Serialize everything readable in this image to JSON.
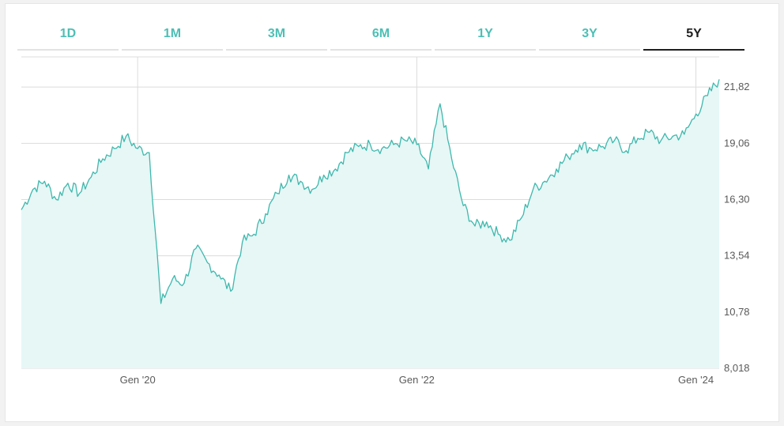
{
  "tabs": [
    {
      "label": "1D",
      "active": false
    },
    {
      "label": "1M",
      "active": false
    },
    {
      "label": "3M",
      "active": false
    },
    {
      "label": "6M",
      "active": false
    },
    {
      "label": "1Y",
      "active": false
    },
    {
      "label": "3Y",
      "active": false
    },
    {
      "label": "5Y",
      "active": true
    }
  ],
  "colors": {
    "accent": "#4cbfb5",
    "line": "#3fb8ad",
    "fill": "#e6f7f6",
    "grid": "#dcdcdc",
    "active_tab": "#1e1e1e"
  },
  "chart_data": {
    "type": "area",
    "title": "",
    "xlabel": "",
    "ylabel": "",
    "y_axis_position": "right",
    "grid": true,
    "ylim": [
      8.018,
      23.3
    ],
    "y_ticks": [
      "21,82",
      "19,06",
      "16,30",
      "13,54",
      "10,78",
      "8,018"
    ],
    "y_tick_values": [
      21.82,
      19.06,
      16.3,
      13.54,
      10.78,
      8.018
    ],
    "x_ticks": [
      "Gen '20",
      "Gen '22",
      "Gen '24"
    ],
    "x_tick_values": [
      "2020-01",
      "2022-01",
      "2024-01"
    ],
    "xlim": [
      "2019-03",
      "2024-03"
    ],
    "series": [
      {
        "x": [
          "2019-03",
          "2019-04",
          "2019-05",
          "2019-06",
          "2019-07",
          "2019-08",
          "2019-09",
          "2019-10",
          "2019-11",
          "2019-12",
          "2020-01",
          "2020-02",
          "2020-03",
          "2020-04",
          "2020-05",
          "2020-06",
          "2020-07",
          "2020-08",
          "2020-09",
          "2020-10",
          "2020-11",
          "2020-12",
          "2021-01",
          "2021-02",
          "2021-03",
          "2021-04",
          "2021-05",
          "2021-06",
          "2021-07",
          "2021-08",
          "2021-09",
          "2021-10",
          "2021-11",
          "2021-12",
          "2022-01",
          "2022-02",
          "2022-03",
          "2022-04",
          "2022-05",
          "2022-06",
          "2022-07",
          "2022-08",
          "2022-09",
          "2022-10",
          "2022-11",
          "2022-12",
          "2023-01",
          "2023-02",
          "2023-03",
          "2023-04",
          "2023-05",
          "2023-06",
          "2023-07",
          "2023-08",
          "2023-09",
          "2023-10",
          "2023-11",
          "2023-12",
          "2024-01",
          "2024-02",
          "2024-03"
        ],
        "values": [
          15.8,
          16.8,
          17.2,
          16.3,
          17.1,
          16.6,
          17.4,
          18.3,
          18.8,
          19.4,
          18.8,
          18.6,
          11.2,
          12.4,
          12.2,
          13.9,
          13.2,
          12.6,
          11.8,
          14.2,
          14.6,
          15.6,
          16.6,
          17.5,
          17.2,
          16.8,
          17.5,
          17.8,
          18.6,
          18.9,
          19.0,
          18.8,
          19.0,
          19.2,
          19.0,
          17.8,
          21.0,
          18.3,
          16.0,
          15.0,
          15.2,
          14.6,
          14.3,
          15.4,
          16.8,
          17.2,
          17.8,
          18.4,
          19.0,
          18.8,
          18.9,
          19.2,
          18.7,
          19.3,
          19.6,
          19.2,
          19.4,
          19.5,
          20.5,
          21.4,
          22.2
        ]
      }
    ]
  }
}
